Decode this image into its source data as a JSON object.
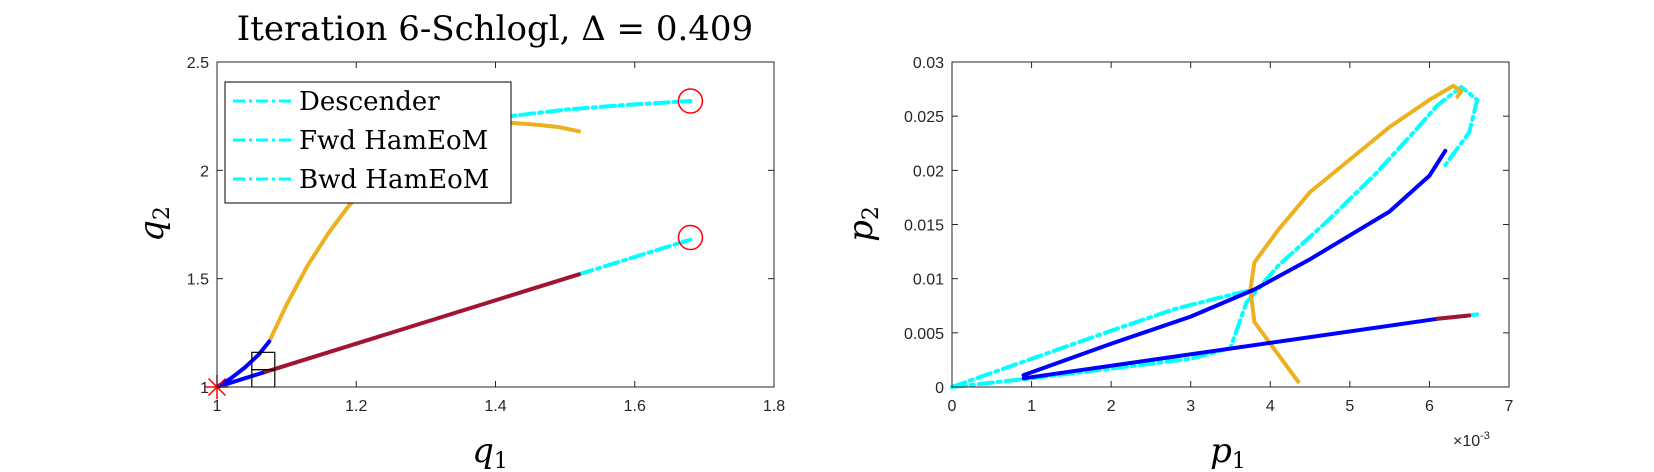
{
  "chart_data": [
    {
      "type": "line",
      "title": "Iteration 6-Schlogl, Δ = 0.409",
      "xlabel": "q",
      "xlabel_sub": "1",
      "ylabel": "q",
      "ylabel_sub": "2",
      "xlim": [
        1,
        1.8
      ],
      "ylim": [
        1,
        2.5
      ],
      "xticks": [
        "1",
        "1.2",
        "1.4",
        "1.6",
        "1.8"
      ],
      "yticks": [
        "1",
        "1.5",
        "2",
        "2.5"
      ],
      "legend": {
        "placement": "top-left",
        "entries": [
          "Descender",
          "Fwd HamEoM",
          "Bwd HamEoM"
        ]
      },
      "series": [
        {
          "name": "Descender",
          "color": "#00ffff",
          "style": "dashdot",
          "x": [
            1.52,
            1.58,
            1.64,
            1.68
          ],
          "y": [
            1.52,
            1.58,
            1.64,
            1.68
          ]
        },
        {
          "name": "Descender",
          "color": "#00ffff",
          "style": "dashdot",
          "x": [
            1.36,
            1.42,
            1.5,
            1.58,
            1.68
          ],
          "y": [
            2.2,
            2.25,
            2.28,
            2.3,
            2.32
          ]
        },
        {
          "name": "",
          "color": "#edb120",
          "style": "solid",
          "x": [
            1.075,
            1.1,
            1.13,
            1.16,
            1.19,
            1.22,
            1.26,
            1.3,
            1.34,
            1.38,
            1.42,
            1.46,
            1.49,
            1.52
          ],
          "y": [
            1.21,
            1.38,
            1.56,
            1.71,
            1.84,
            1.93,
            2.03,
            2.1,
            2.16,
            2.2,
            2.22,
            2.21,
            2.2,
            2.18
          ]
        },
        {
          "name": "",
          "color": "#0000ff",
          "style": "solid",
          "x": [
            1.0,
            1.02,
            1.04,
            1.06,
            1.075
          ],
          "y": [
            1.0,
            1.04,
            1.09,
            1.15,
            1.21
          ]
        },
        {
          "name": "",
          "color": "#0000ff",
          "style": "solid",
          "x": [
            1.0,
            1.07
          ],
          "y": [
            1.0,
            1.07
          ]
        },
        {
          "name": "",
          "color": "#a2142f",
          "style": "solid",
          "x": [
            1.07,
            1.52
          ],
          "y": [
            1.07,
            1.52
          ]
        }
      ],
      "markers": [
        {
          "kind": "circle",
          "color": "#ff0000",
          "x": 1.68,
          "y": 2.32
        },
        {
          "kind": "circle",
          "color": "#ff0000",
          "x": 1.68,
          "y": 1.69
        },
        {
          "kind": "asterisk",
          "color": "#ff0000",
          "x": 1.0,
          "y": 1.0
        }
      ],
      "boxes": [
        {
          "x0": 1.05,
          "x1": 1.083,
          "y0": 1.0,
          "y1": 1.08
        },
        {
          "x0": 1.05,
          "x1": 1.083,
          "y0": 1.08,
          "y1": 1.16
        }
      ]
    },
    {
      "type": "line",
      "xlabel": "p",
      "xlabel_sub": "1",
      "ylabel": "p",
      "ylabel_sub": "2",
      "xlim": [
        0,
        0.007
      ],
      "ylim": [
        0,
        0.03
      ],
      "xticks": [
        "0",
        "1",
        "2",
        "3",
        "4",
        "5",
        "6",
        "7"
      ],
      "yticks": [
        "0",
        "0.005",
        "0.01",
        "0.015",
        "0.02",
        "0.025",
        "0.03"
      ],
      "xexponent": "-3",
      "series": [
        {
          "name": "",
          "color": "#00ffff",
          "style": "dashdot",
          "x": [
            0.0,
            0.001,
            0.002,
            0.003,
            0.0035,
            0.0037
          ],
          "y": [
            0.0,
            0.0008,
            0.0017,
            0.0026,
            0.0036,
            0.0078
          ]
        },
        {
          "name": "",
          "color": "#00ffff",
          "style": "dashdot",
          "x": [
            0.0,
            0.001,
            0.002,
            0.0028,
            0.0035,
            0.0038
          ],
          "y": [
            0.0,
            0.0026,
            0.0052,
            0.0072,
            0.0085,
            0.009
          ]
        },
        {
          "name": "",
          "color": "#00ffff",
          "style": "dashdot",
          "x": [
            0.0037,
            0.0041,
            0.0047,
            0.0053,
            0.0058,
            0.0061,
            0.0064,
            0.0066,
            0.0065,
            0.0062
          ],
          "y": [
            0.0078,
            0.0112,
            0.0152,
            0.0195,
            0.0235,
            0.026,
            0.0277,
            0.0265,
            0.0235,
            0.0205
          ]
        },
        {
          "name": "",
          "color": "#00ffff",
          "style": "dashdot",
          "x": [
            0.0061,
            0.0066
          ],
          "y": [
            0.0063,
            0.0067
          ]
        },
        {
          "name": "",
          "color": "#edb120",
          "style": "solid",
          "x": [
            0.00435,
            0.0041,
            0.0038,
            0.00375,
            0.0038,
            0.0041,
            0.0045,
            0.005,
            0.0055,
            0.006,
            0.0063,
            0.0064,
            0.00635
          ],
          "y": [
            0.0005,
            0.003,
            0.006,
            0.009,
            0.0115,
            0.0145,
            0.018,
            0.021,
            0.024,
            0.0265,
            0.0278,
            0.0273,
            0.0268
          ]
        },
        {
          "name": "",
          "color": "#0000ff",
          "style": "solid",
          "x": [
            0.0009,
            0.002,
            0.003,
            0.0038,
            0.0045,
            0.005,
            0.0055,
            0.006,
            0.0062
          ],
          "y": [
            0.0011,
            0.004,
            0.0065,
            0.009,
            0.0118,
            0.014,
            0.0162,
            0.0195,
            0.0218
          ]
        },
        {
          "name": "",
          "color": "#0000ff",
          "style": "solid",
          "x": [
            0.0009,
            0.0061
          ],
          "y": [
            0.0008,
            0.0063
          ]
        },
        {
          "name": "",
          "color": "#a2142f",
          "style": "solid",
          "x": [
            0.0061,
            0.0065
          ],
          "y": [
            0.0063,
            0.0066
          ]
        }
      ]
    }
  ]
}
